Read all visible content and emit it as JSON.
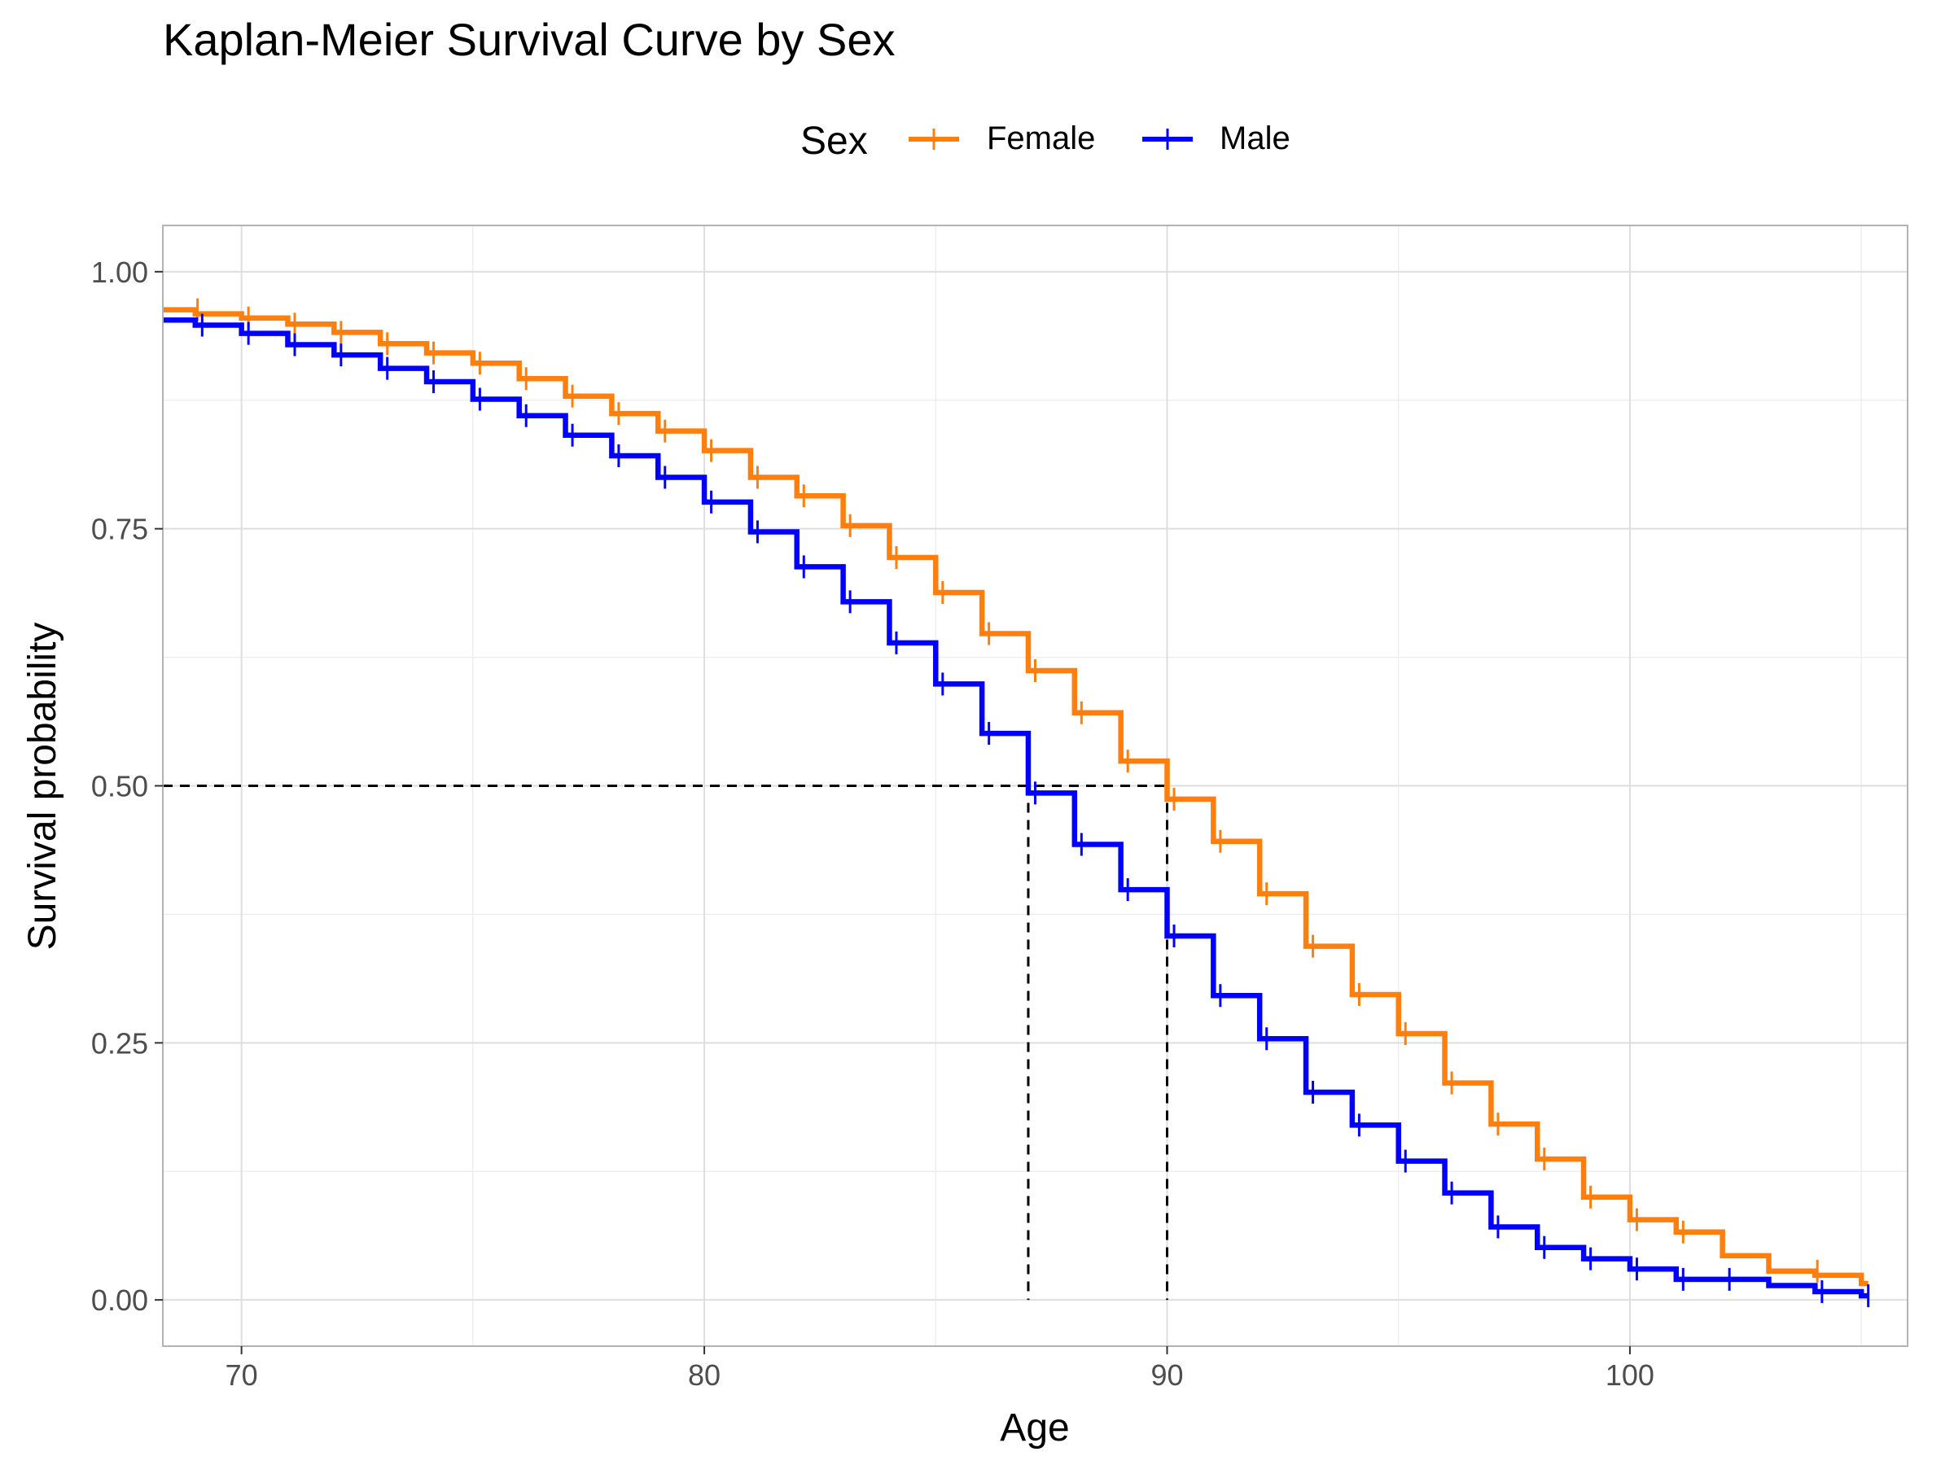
{
  "chart_data": {
    "type": "line",
    "title": "Kaplan-Meier Survival Curve by Sex",
    "xlabel": "Age",
    "ylabel": "Survival probability",
    "xlim": [
      68.3,
      106.0
    ],
    "ylim": [
      -0.045,
      1.045
    ],
    "x_ticks": [
      70,
      80,
      90,
      100
    ],
    "x_tick_labels": [
      "70",
      "80",
      "90",
      "100"
    ],
    "y_ticks": [
      0,
      0.25,
      0.5,
      0.75,
      1.0
    ],
    "y_tick_labels": [
      "0.00",
      "0.25",
      "0.50",
      "0.75",
      "1.00"
    ],
    "grid": true,
    "legend": {
      "title": "Sex",
      "position": "top",
      "entries": [
        "Female",
        "Male"
      ]
    },
    "colors": {
      "Female": "#ff7f0e",
      "Male": "#0000ff"
    },
    "median_reference": {
      "y": 0.5,
      "x": [
        87,
        90
      ]
    },
    "series": [
      {
        "name": "Female",
        "color": "#ff7f0e",
        "steps": [
          [
            68.3,
            0.963
          ],
          [
            69,
            0.959
          ],
          [
            70,
            0.955
          ],
          [
            71,
            0.949
          ],
          [
            72,
            0.941
          ],
          [
            73,
            0.93
          ],
          [
            74,
            0.921
          ],
          [
            75,
            0.911
          ],
          [
            76,
            0.896
          ],
          [
            77,
            0.879
          ],
          [
            78,
            0.862
          ],
          [
            79,
            0.845
          ],
          [
            80,
            0.826
          ],
          [
            81,
            0.8
          ],
          [
            82,
            0.782
          ],
          [
            83,
            0.753
          ],
          [
            84,
            0.722
          ],
          [
            85,
            0.688
          ],
          [
            86,
            0.648
          ],
          [
            87,
            0.612
          ],
          [
            88,
            0.571
          ],
          [
            89,
            0.524
          ],
          [
            90,
            0.487
          ],
          [
            91,
            0.446
          ],
          [
            92,
            0.395
          ],
          [
            93,
            0.344
          ],
          [
            94,
            0.297
          ],
          [
            95,
            0.259
          ],
          [
            96,
            0.211
          ],
          [
            97,
            0.171
          ],
          [
            98,
            0.137
          ],
          [
            99,
            0.1
          ],
          [
            100,
            0.078
          ],
          [
            101,
            0.066
          ],
          [
            102,
            0.043
          ],
          [
            103,
            0.028
          ],
          [
            104,
            0.024
          ],
          [
            105,
            0.016
          ]
        ],
        "censor_ages": [
          68.9,
          70,
          71,
          72,
          73,
          74,
          75,
          76,
          77,
          78,
          79,
          80,
          81,
          82,
          83,
          84,
          85,
          86,
          87,
          88,
          89,
          90,
          91,
          92,
          93,
          94,
          95,
          96,
          97,
          98,
          99,
          100,
          101,
          103.9
        ]
      },
      {
        "name": "Male",
        "color": "#0000ff",
        "steps": [
          [
            68.3,
            0.953
          ],
          [
            69,
            0.948
          ],
          [
            70,
            0.94
          ],
          [
            71,
            0.929
          ],
          [
            72,
            0.919
          ],
          [
            73,
            0.906
          ],
          [
            74,
            0.893
          ],
          [
            75,
            0.876
          ],
          [
            76,
            0.86
          ],
          [
            77,
            0.841
          ],
          [
            78,
            0.821
          ],
          [
            79,
            0.8
          ],
          [
            80,
            0.776
          ],
          [
            81,
            0.747
          ],
          [
            82,
            0.713
          ],
          [
            83,
            0.679
          ],
          [
            84,
            0.639
          ],
          [
            85,
            0.599
          ],
          [
            86,
            0.551
          ],
          [
            87,
            0.493
          ],
          [
            88,
            0.443
          ],
          [
            89,
            0.399
          ],
          [
            90,
            0.354
          ],
          [
            91,
            0.296
          ],
          [
            92,
            0.254
          ],
          [
            93,
            0.202
          ],
          [
            94,
            0.17
          ],
          [
            95,
            0.135
          ],
          [
            96,
            0.104
          ],
          [
            97,
            0.071
          ],
          [
            98,
            0.051
          ],
          [
            99,
            0.04
          ],
          [
            100,
            0.03
          ],
          [
            101,
            0.02
          ],
          [
            103,
            0.014
          ],
          [
            104,
            0.008
          ],
          [
            105,
            0.004
          ]
        ],
        "censor_ages": [
          69,
          70,
          71,
          72,
          73,
          74,
          75,
          76,
          77,
          78,
          79,
          80,
          81,
          82,
          83,
          84,
          85,
          86,
          87,
          88,
          89,
          90,
          91,
          92,
          93,
          94,
          95,
          96,
          97,
          98,
          99,
          100,
          101,
          102,
          104,
          105
        ]
      }
    ]
  }
}
